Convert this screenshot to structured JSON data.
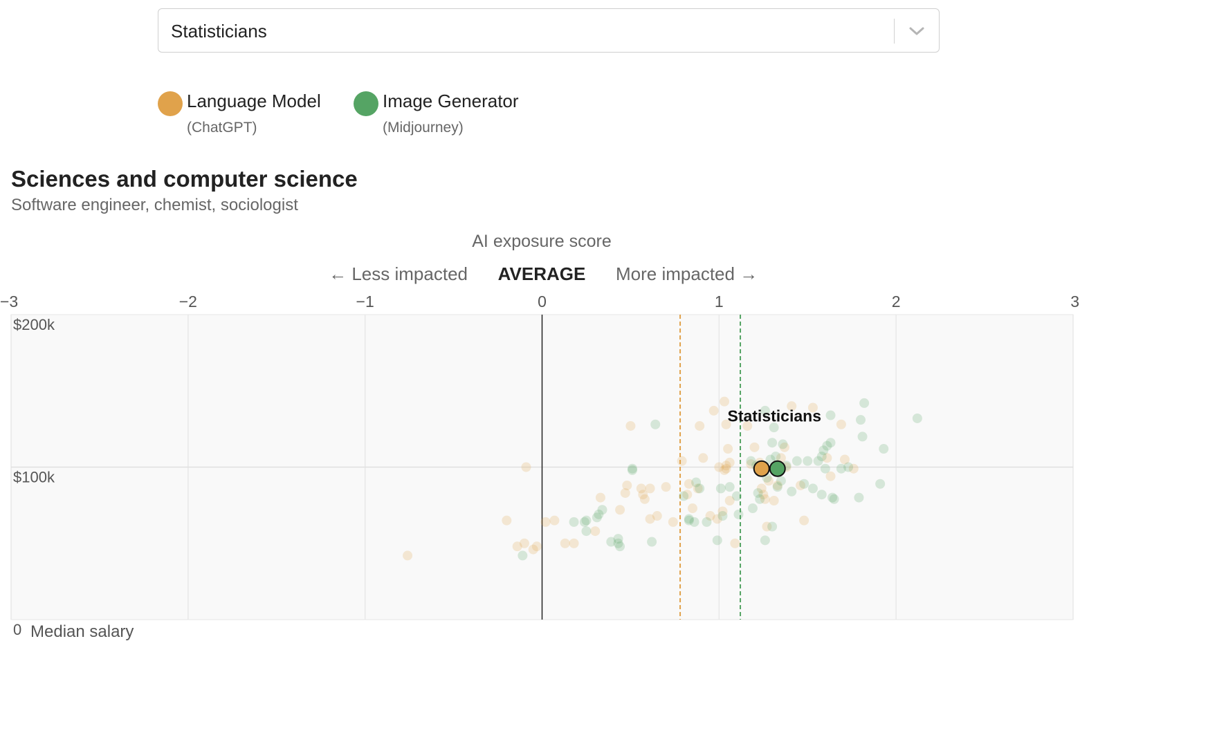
{
  "occupation_select": {
    "value": "Statisticians"
  },
  "legend": [
    {
      "label": "Language Model",
      "sublabel": "(ChatGPT)",
      "color": "#e0a24b"
    },
    {
      "label": "Image Generator",
      "sublabel": "(Midjourney)",
      "color": "#55a464"
    }
  ],
  "section": {
    "title": "Sciences and computer science",
    "subtitle": "Software engineer, chemist, sociologist"
  },
  "chart_data": {
    "type": "scatter",
    "title": "AI exposure score",
    "x_hint_left": "← Less impacted",
    "x_hint_center": "AVERAGE",
    "x_hint_right": "More impacted →",
    "xlim": [
      -3,
      3
    ],
    "ylim": [
      0,
      200000
    ],
    "x_ticks": [
      -3,
      -2,
      -1,
      0,
      1,
      2,
      3
    ],
    "x_tick_labels": [
      "−3",
      "−2",
      "−1",
      "0",
      "1",
      "2",
      "3"
    ],
    "y_ticks": [
      200000,
      100000
    ],
    "y_tick_labels": [
      "$200k",
      "$100k"
    ],
    "y_zero_label": "0",
    "ylabel": "Median salary",
    "grid": true,
    "average_lines": [
      {
        "series": "Language Model",
        "x": 0.78,
        "color": "#e0a24b"
      },
      {
        "series": "Image Generator",
        "x": 1.12,
        "color": "#55a464"
      }
    ],
    "highlight": {
      "label": "Statisticians",
      "points": [
        {
          "series": "Language Model",
          "x": 1.24,
          "y": 99000
        },
        {
          "series": "Image Generator",
          "x": 1.33,
          "y": 99000
        }
      ]
    },
    "series": [
      {
        "name": "Language Model",
        "color": "#e0a24b",
        "points": [
          [
            -0.76,
            42000
          ],
          [
            -0.2,
            65000
          ],
          [
            -0.14,
            48000
          ],
          [
            -0.1,
            50000
          ],
          [
            -0.09,
            100000
          ],
          [
            -0.05,
            46000
          ],
          [
            -0.03,
            48000
          ],
          [
            0.02,
            64000
          ],
          [
            0.07,
            65000
          ],
          [
            0.13,
            50000
          ],
          [
            0.18,
            50000
          ],
          [
            0.3,
            58000
          ],
          [
            0.33,
            80000
          ],
          [
            0.44,
            72000
          ],
          [
            0.47,
            83000
          ],
          [
            0.48,
            88000
          ],
          [
            0.5,
            127000
          ],
          [
            0.56,
            86000
          ],
          [
            0.57,
            82000
          ],
          [
            0.58,
            79000
          ],
          [
            0.61,
            86000
          ],
          [
            0.61,
            66000
          ],
          [
            0.65,
            68000
          ],
          [
            0.7,
            87000
          ],
          [
            0.74,
            64000
          ],
          [
            0.79,
            104000
          ],
          [
            0.82,
            82000
          ],
          [
            0.83,
            89000
          ],
          [
            0.85,
            73000
          ],
          [
            0.88,
            86000
          ],
          [
            0.89,
            127000
          ],
          [
            0.91,
            106000
          ],
          [
            0.95,
            68000
          ],
          [
            0.97,
            137000
          ],
          [
            0.99,
            66000
          ],
          [
            1.0,
            100000
          ],
          [
            1.02,
            71000
          ],
          [
            1.03,
            143000
          ],
          [
            1.03,
            98000
          ],
          [
            1.04,
            101000
          ],
          [
            1.04,
            99000
          ],
          [
            1.04,
            128000
          ],
          [
            1.05,
            112000
          ],
          [
            1.06,
            103000
          ],
          [
            1.06,
            78000
          ],
          [
            1.09,
            50000
          ],
          [
            1.16,
            127000
          ],
          [
            1.18,
            102000
          ],
          [
            1.2,
            113000
          ],
          [
            1.23,
            103000
          ],
          [
            1.24,
            86000
          ],
          [
            1.25,
            82000
          ],
          [
            1.26,
            79000
          ],
          [
            1.27,
            61000
          ],
          [
            1.28,
            91000
          ],
          [
            1.31,
            78000
          ],
          [
            1.33,
            88000
          ],
          [
            1.35,
            106000
          ],
          [
            1.37,
            113000
          ],
          [
            1.38,
            100000
          ],
          [
            1.41,
            140000
          ],
          [
            1.46,
            88000
          ],
          [
            1.48,
            65000
          ],
          [
            1.53,
            139000
          ],
          [
            1.69,
            128000
          ],
          [
            1.63,
            94000
          ],
          [
            1.61,
            106000
          ],
          [
            1.71,
            105000
          ],
          [
            1.76,
            99000
          ]
        ]
      },
      {
        "name": "Image Generator",
        "color": "#55a464",
        "points": [
          [
            -0.11,
            42000
          ],
          [
            0.18,
            64000
          ],
          [
            0.24,
            64000
          ],
          [
            0.25,
            65000
          ],
          [
            0.25,
            58000
          ],
          [
            0.31,
            67000
          ],
          [
            0.32,
            69000
          ],
          [
            0.34,
            72000
          ],
          [
            0.39,
            51000
          ],
          [
            0.43,
            50000
          ],
          [
            0.43,
            53000
          ],
          [
            0.44,
            48000
          ],
          [
            0.51,
            99000
          ],
          [
            0.51,
            98000
          ],
          [
            0.62,
            51000
          ],
          [
            0.64,
            128000
          ],
          [
            0.8,
            81000
          ],
          [
            0.83,
            65000
          ],
          [
            0.83,
            66000
          ],
          [
            0.87,
            90000
          ],
          [
            0.86,
            64000
          ],
          [
            0.89,
            86000
          ],
          [
            0.93,
            64000
          ],
          [
            0.99,
            52000
          ],
          [
            1.01,
            86000
          ],
          [
            1.02,
            68000
          ],
          [
            1.06,
            87000
          ],
          [
            1.1,
            81000
          ],
          [
            1.11,
            69000
          ],
          [
            1.18,
            104000
          ],
          [
            1.19,
            73000
          ],
          [
            1.21,
            101000
          ],
          [
            1.22,
            83000
          ],
          [
            1.23,
            79000
          ],
          [
            1.25,
            99000
          ],
          [
            1.25,
            100000
          ],
          [
            1.26,
            52000
          ],
          [
            1.26,
            137000
          ],
          [
            1.27,
            93000
          ],
          [
            1.29,
            105000
          ],
          [
            1.3,
            61000
          ],
          [
            1.3,
            116000
          ],
          [
            1.31,
            126000
          ],
          [
            1.32,
            107000
          ],
          [
            1.33,
            87000
          ],
          [
            1.35,
            91000
          ],
          [
            1.36,
            115000
          ],
          [
            1.38,
            101000
          ],
          [
            1.41,
            84000
          ],
          [
            1.44,
            104000
          ],
          [
            1.48,
            89000
          ],
          [
            1.5,
            104000
          ],
          [
            1.53,
            86000
          ],
          [
            1.56,
            104000
          ],
          [
            1.58,
            82000
          ],
          [
            1.58,
            107000
          ],
          [
            1.59,
            111000
          ],
          [
            1.6,
            99000
          ],
          [
            1.61,
            114000
          ],
          [
            1.63,
            134000
          ],
          [
            1.63,
            116000
          ],
          [
            1.64,
            80000
          ],
          [
            1.65,
            79000
          ],
          [
            1.69,
            99000
          ],
          [
            1.73,
            100000
          ],
          [
            1.79,
            80000
          ],
          [
            1.8,
            131000
          ],
          [
            1.82,
            142000
          ],
          [
            1.81,
            120000
          ],
          [
            1.93,
            112000
          ],
          [
            1.91,
            89000
          ],
          [
            2.12,
            132000
          ]
        ]
      }
    ]
  }
}
